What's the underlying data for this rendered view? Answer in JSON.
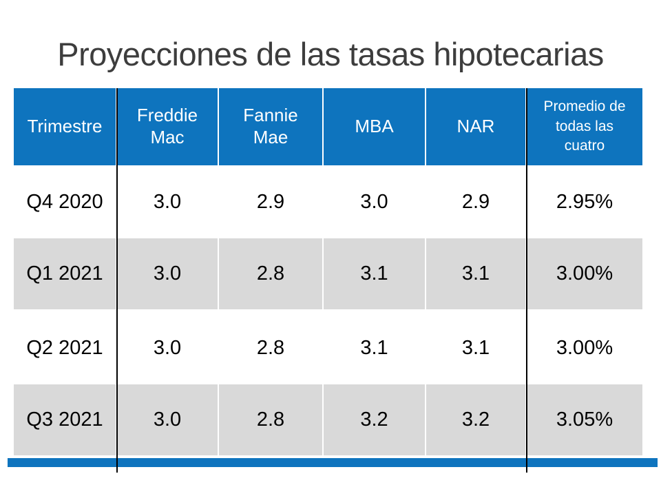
{
  "colors": {
    "accent": "#0e74be",
    "row-alt": "#d9d9d9",
    "title-text": "#3d3d3d",
    "header-text": "#ffffff",
    "body-text": "#000000",
    "line": "#000000"
  },
  "slide": {
    "title": "Proyecciones de las tasas hipotecarias"
  },
  "table": {
    "columns": [
      {
        "label": "Trimestre"
      },
      {
        "label": "Freddie\nMac"
      },
      {
        "label": "Fannie\nMae"
      },
      {
        "label": "MBA"
      },
      {
        "label": "NAR"
      },
      {
        "label": "Promedio de\ntodas las\ncuatro"
      }
    ],
    "rows": [
      {
        "cells": [
          "Q4 2020",
          "3.0",
          "2.9",
          "3.0",
          "2.9",
          "2.95%"
        ]
      },
      {
        "cells": [
          "Q1 2021",
          "3.0",
          "2.8",
          "3.1",
          "3.1",
          "3.00%"
        ]
      },
      {
        "cells": [
          "Q2 2021",
          "3.0",
          "2.8",
          "3.1",
          "3.1",
          "3.00%"
        ]
      },
      {
        "cells": [
          "Q3 2021",
          "3.0",
          "2.8",
          "3.2",
          "3.2",
          "3.05%"
        ]
      }
    ]
  },
  "chart_data": {
    "type": "table",
    "title": "Proyecciones de las tasas hipotecarias",
    "columns": [
      "Trimestre",
      "Freddie Mac",
      "Fannie Mae",
      "MBA",
      "NAR",
      "Promedio de todas las cuatro"
    ],
    "rows": [
      [
        "Q4 2020",
        3.0,
        2.9,
        3.0,
        2.9,
        "2.95%"
      ],
      [
        "Q1 2021",
        3.0,
        2.8,
        3.1,
        3.1,
        "3.00%"
      ],
      [
        "Q2 2021",
        3.0,
        2.8,
        3.1,
        3.1,
        "3.00%"
      ],
      [
        "Q3 2021",
        3.0,
        2.8,
        3.2,
        3.2,
        "3.05%"
      ]
    ],
    "layout": {
      "header_bg": "#0e74be",
      "alt_row_bg": "#d9d9d9",
      "row_striping": [
        "white",
        "gray",
        "white",
        "gray"
      ]
    }
  }
}
